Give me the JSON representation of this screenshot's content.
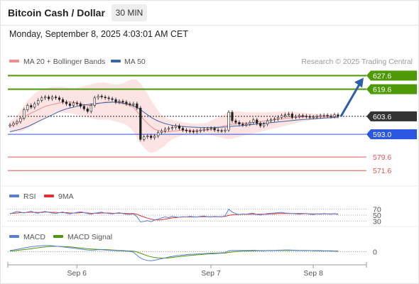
{
  "header": {
    "title": "Bitcoin Cash / Dollar",
    "interval": "30 MIN",
    "datetime": "Monday, September 8, 2025 4:03:01 AM CET"
  },
  "colors": {
    "resistance": "#4d9a06",
    "support": "#2a56e0",
    "minor_support": "#e05757",
    "pivot": "#222222",
    "ma20": "#f08d8d",
    "ma50": "#3d64a6",
    "bollinger_fill": "#fde1e1",
    "rsi": "#5b7fd6",
    "rsi_ma": "#e03030",
    "macd": "#5b7fd6",
    "macd_signal": "#4d9a06",
    "arrow": "#2d5ea8",
    "candle_up": "#ffffff",
    "candle_down": "#222222"
  },
  "chart_data": [
    {
      "panel": "price",
      "type": "candlestick",
      "x_labels": [
        "Sep 6",
        "Sep 7",
        "Sep 8"
      ],
      "ylim": [
        565,
        632
      ],
      "legend": [
        {
          "name": "MA 20 + Bollinger Bands",
          "icon": "line-swatch"
        },
        {
          "name": "MA 50",
          "icon": "line-swatch"
        }
      ],
      "copyright": "Research © 2025 Trading Central",
      "levels": [
        {
          "value": 627.6,
          "label": "627.6",
          "role": "resistance"
        },
        {
          "value": 619.6,
          "label": "619.6",
          "role": "resistance"
        },
        {
          "value": 603.6,
          "label": "603.6",
          "role": "pivot"
        },
        {
          "value": 593.0,
          "label": "593.0",
          "role": "support"
        },
        {
          "value": 579.6,
          "label": "579.6",
          "role": "minor_support"
        },
        {
          "value": 571.6,
          "label": "571.6",
          "role": "minor_support"
        }
      ],
      "close_series": [
        598.5,
        599.5,
        600.5,
        602.5,
        607.5,
        610.0,
        609.0,
        611.0,
        613.0,
        614.5,
        615.0,
        614.0,
        615.0,
        614.5,
        613.5,
        612.0,
        611.0,
        610.0,
        611.5,
        611.0,
        609.5,
        608.0,
        606.5,
        610.0,
        614.5,
        615.5,
        615.0,
        614.5,
        614.0,
        613.5,
        612.0,
        612.5,
        612.0,
        611.0,
        610.5,
        611.0,
        608.5,
        590.0,
        591.5,
        592.0,
        591.0,
        592.0,
        594.0,
        595.0,
        596.0,
        596.5,
        597.0,
        598.0,
        596.5,
        595.5,
        595.0,
        594.8,
        594.5,
        595.0,
        595.5,
        596.0,
        596.2,
        596.5,
        595.5,
        595.2,
        595.0,
        595.5,
        606.0,
        601.0,
        600.0,
        599.0,
        598.5,
        599.0,
        600.0,
        601.5,
        599.5,
        598.0,
        599.0,
        601.0,
        601.5,
        602.0,
        603.0,
        604.0,
        604.5,
        605.0,
        603.0,
        603.5,
        604.0,
        603.8,
        603.5,
        603.0,
        603.2,
        603.5,
        604.0,
        604.2,
        603.8,
        603.5,
        604.5,
        603.6
      ],
      "ma20": [
        598,
        598.5,
        599.5,
        601,
        603,
        604.5,
        605.5,
        606.5,
        607.5,
        608.5,
        609.5,
        610,
        610.5,
        611,
        611.5,
        612,
        612,
        612,
        611.8,
        611.5,
        611,
        610.5,
        610,
        610,
        610.5,
        611,
        611.5,
        612,
        612,
        612,
        611.8,
        611.5,
        611,
        610.5,
        610,
        609,
        606.5,
        604,
        601.5,
        599.5,
        597.5,
        596,
        595.3,
        594.8,
        594.5,
        594.5,
        594.8,
        595,
        595.3,
        595.5,
        595.5,
        595.3,
        595.2,
        595.2,
        595.3,
        595.5,
        595.5,
        596,
        596.5,
        597,
        597.5,
        598,
        598.5,
        599,
        599.3,
        599.5,
        599.5,
        599.5,
        599.8,
        600,
        600.3,
        600.5,
        600.8,
        601,
        601.3,
        601.5,
        601.8,
        602,
        602.3,
        602.5,
        602.8,
        603,
        603,
        603.2,
        603.3,
        603.3,
        603.4,
        603.5,
        603.5,
        603.5,
        603.6,
        603.6,
        603.6,
        603.6
      ],
      "ma50": [
        594.5,
        595,
        595.5,
        596,
        596.8,
        597.5,
        598.5,
        599.5,
        600.5,
        601.5,
        602.5,
        603.5,
        604.5,
        605.5,
        606.5,
        607.3,
        608,
        608.5,
        609,
        609.5,
        610,
        610.3,
        610.5,
        610.8,
        611,
        611.3,
        611.5,
        611.7,
        611.8,
        611.9,
        611.9,
        611.8,
        611.5,
        611,
        610.5,
        609.8,
        608.8,
        607.5,
        606,
        604.5,
        603,
        601.8,
        600.8,
        600,
        599.3,
        598.8,
        598.3,
        598,
        597.8,
        597.6,
        597.4,
        597.3,
        597.2,
        597.1,
        597,
        597,
        597,
        597,
        597,
        597.1,
        597.2,
        597.3,
        597.5,
        597.7,
        597.9,
        598,
        598.2,
        598.4,
        598.6,
        598.8,
        599,
        599.2,
        599.5,
        599.7,
        599.9,
        600.1,
        600.3,
        600.5,
        600.7,
        600.9,
        601.1,
        601.3,
        601.5,
        601.7,
        601.8,
        602,
        602.1,
        602.3,
        602.4,
        602.6,
        602.7,
        602.8,
        603,
        603.1
      ],
      "bollinger_upper": [
        601,
        602,
        604,
        607,
        610,
        613,
        615,
        617,
        618.5,
        619.5,
        620,
        620.5,
        621,
        621,
        621,
        621,
        620.5,
        620.5,
        620.5,
        620.5,
        621,
        621.5,
        622,
        622.5,
        623,
        623.5,
        623.5,
        623.5,
        623,
        622.5,
        622.5,
        622.5,
        623,
        624,
        625,
        625.5,
        625,
        623,
        620,
        617,
        613,
        610,
        607,
        604.5,
        603,
        602,
        601.5,
        601,
        600.5,
        600,
        599.8,
        599.5,
        599.3,
        599.3,
        599.5,
        599.5,
        600,
        601,
        602,
        603,
        604,
        605,
        606.5,
        606.5,
        606.5,
        606.5,
        606.3,
        606,
        606,
        606,
        606,
        606,
        606,
        606,
        606,
        606.2,
        606.3,
        606.5,
        606.5,
        606.5,
        606.3,
        606.2,
        606,
        605.8,
        605.5,
        605.5,
        605.3,
        605.2,
        605,
        605,
        605,
        605,
        605,
        605
      ],
      "bollinger_lower": [
        595,
        594.5,
        594.5,
        594.5,
        595.5,
        596.5,
        597.5,
        598.5,
        600,
        601.5,
        603,
        604,
        605,
        605.5,
        605.8,
        605.8,
        605.6,
        605.5,
        605,
        604.5,
        604,
        603.5,
        603,
        602.5,
        602,
        601.5,
        601.5,
        601.5,
        601.5,
        601,
        600.5,
        600,
        599.5,
        598.5,
        597,
        594.5,
        591,
        587.5,
        585,
        583,
        582,
        582.5,
        583.5,
        585,
        586.5,
        588.5,
        590,
        591,
        591.8,
        592.5,
        593,
        593.2,
        593.3,
        593.3,
        593.3,
        593.2,
        593,
        592.5,
        592,
        591.5,
        591,
        590.5,
        590,
        590.5,
        591,
        591.5,
        592,
        592.5,
        593,
        593.5,
        594,
        594.5,
        595,
        595.5,
        596,
        596.5,
        597,
        597.5,
        598,
        598.5,
        599,
        599.5,
        600,
        600.5,
        601,
        601.2,
        601.5,
        601.7,
        601.8,
        602,
        602.1,
        602.2,
        602.3,
        602.3
      ]
    },
    {
      "panel": "rsi",
      "type": "line",
      "legend": [
        "RSI",
        "9MA"
      ],
      "ylim": [
        0,
        100
      ],
      "levels": [
        {
          "value": 70,
          "label": "70"
        },
        {
          "value": 50,
          "label": "50"
        },
        {
          "value": 30,
          "label": "30"
        }
      ],
      "rsi": [
        54,
        58,
        62,
        60,
        57,
        60,
        63,
        58,
        56,
        60,
        62,
        59,
        57,
        55,
        58,
        60,
        56,
        54,
        57,
        59,
        61,
        58,
        55,
        53,
        56,
        58,
        60,
        57,
        55,
        54,
        56,
        58,
        55,
        53,
        52,
        54,
        45,
        28,
        30,
        32,
        29,
        34,
        37,
        41,
        44,
        42,
        46,
        44,
        43,
        45,
        44,
        46,
        45,
        44,
        46,
        47,
        45,
        44,
        46,
        45,
        44,
        48,
        69,
        60,
        55,
        52,
        54,
        53,
        55,
        56,
        52,
        50,
        53,
        55,
        56,
        57,
        58,
        59,
        57,
        56,
        55,
        54,
        53,
        54,
        55,
        53,
        52,
        54,
        53,
        55,
        54,
        53,
        55,
        52
      ],
      "rsi_ma": [
        55,
        56,
        57,
        58,
        58,
        59,
        59,
        59,
        59,
        59,
        60,
        60,
        59,
        59,
        58,
        58,
        58,
        57,
        57,
        57,
        58,
        58,
        57,
        56,
        56,
        56,
        57,
        57,
        57,
        56,
        56,
        56,
        56,
        55,
        55,
        55,
        53,
        48,
        44,
        40,
        37,
        35,
        34,
        35,
        37,
        39,
        41,
        42,
        43,
        44,
        44,
        44,
        44,
        44,
        45,
        45,
        45,
        45,
        45,
        45,
        45,
        46,
        49,
        51,
        52,
        52,
        53,
        53,
        53,
        53,
        53,
        53,
        53,
        53,
        54,
        54,
        55,
        55,
        55,
        55,
        55,
        55,
        55,
        55,
        55,
        54,
        54,
        54,
        54,
        54,
        54,
        54,
        54,
        54
      ]
    },
    {
      "panel": "macd",
      "type": "line",
      "legend": [
        "MACD",
        "MACD Signal"
      ],
      "ylim": [
        -5.5,
        4
      ],
      "levels": [
        {
          "value": 0,
          "label": "0"
        }
      ],
      "macd": [
        0.5,
        0.8,
        1.1,
        1.4,
        1.8,
        2.1,
        2.4,
        2.6,
        2.8,
        2.9,
        3.0,
        3.0,
        2.9,
        2.7,
        2.5,
        2.3,
        2.1,
        1.9,
        1.7,
        1.5,
        1.3,
        1.0,
        0.8,
        0.7,
        0.8,
        0.9,
        0.9,
        0.8,
        0.7,
        0.6,
        0.5,
        0.4,
        0.3,
        0.2,
        0.1,
        -0.3,
        -1.8,
        -3.2,
        -4.0,
        -4.4,
        -4.5,
        -4.3,
        -3.9,
        -3.5,
        -3.1,
        -2.7,
        -2.4,
        -2.1,
        -1.9,
        -1.7,
        -1.5,
        -1.4,
        -1.3,
        -1.2,
        -1.1,
        -1.0,
        -0.9,
        -0.8,
        -0.7,
        -0.7,
        -0.6,
        -0.5,
        0.4,
        0.6,
        0.6,
        0.6,
        0.6,
        0.6,
        0.6,
        0.7,
        0.6,
        0.5,
        0.5,
        0.6,
        0.6,
        0.6,
        0.7,
        0.7,
        0.8,
        0.8,
        0.7,
        0.7,
        0.6,
        0.6,
        0.5,
        0.5,
        0.4,
        0.4,
        0.4,
        0.3,
        0.3,
        0.2,
        0.2,
        0.1
      ],
      "macd_signal": [
        0.3,
        0.4,
        0.6,
        0.8,
        1.0,
        1.2,
        1.4,
        1.7,
        1.9,
        2.1,
        2.3,
        2.5,
        2.6,
        2.6,
        2.6,
        2.5,
        2.4,
        2.3,
        2.2,
        2.0,
        1.8,
        1.6,
        1.4,
        1.3,
        1.2,
        1.1,
        1.0,
        1.0,
        0.9,
        0.8,
        0.7,
        0.6,
        0.5,
        0.4,
        0.3,
        0.2,
        -0.2,
        -0.8,
        -1.5,
        -2.1,
        -2.6,
        -2.9,
        -3.1,
        -3.2,
        -3.2,
        -3.1,
        -2.9,
        -2.7,
        -2.5,
        -2.3,
        -2.1,
        -1.9,
        -1.8,
        -1.6,
        -1.5,
        -1.3,
        -1.2,
        -1.1,
        -1.0,
        -0.9,
        -0.8,
        -0.7,
        -0.4,
        -0.2,
        0.0,
        0.1,
        0.2,
        0.3,
        0.3,
        0.4,
        0.4,
        0.4,
        0.4,
        0.5,
        0.5,
        0.5,
        0.5,
        0.6,
        0.6,
        0.6,
        0.6,
        0.6,
        0.6,
        0.6,
        0.6,
        0.5,
        0.5,
        0.5,
        0.5,
        0.4,
        0.4,
        0.4,
        0.3,
        0.3
      ]
    }
  ]
}
